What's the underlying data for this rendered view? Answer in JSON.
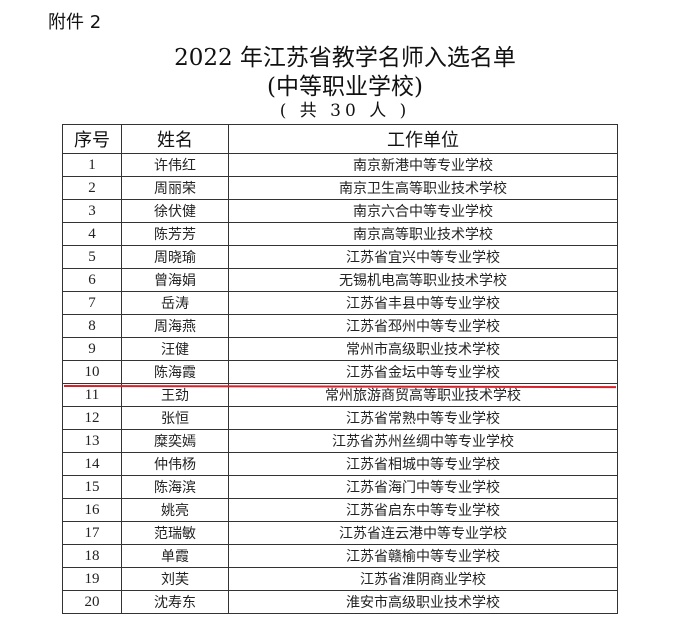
{
  "attachment_label": "附件 2",
  "title": "2022 年江苏省教学名师入选名单",
  "subtitle": "(中等职业学校)",
  "total": "( 共 30 人 )",
  "table": {
    "headers": [
      "序号",
      "姓名",
      "工作单位"
    ],
    "rows": [
      [
        "1",
        "许伟红",
        "南京新港中等专业学校"
      ],
      [
        "2",
        "周丽荣",
        "南京卫生高等职业技术学校"
      ],
      [
        "3",
        "徐伏健",
        "南京六合中等专业学校"
      ],
      [
        "4",
        "陈芳芳",
        "南京高等职业技术学校"
      ],
      [
        "5",
        "周晓瑜",
        "江苏省宜兴中等专业学校"
      ],
      [
        "6",
        "曾海娟",
        "无锡机电高等职业技术学校"
      ],
      [
        "7",
        "岳涛",
        "江苏省丰县中等专业学校"
      ],
      [
        "8",
        "周海燕",
        "江苏省邳州中等专业学校"
      ],
      [
        "9",
        "汪健",
        "常州市高级职业技术学校"
      ],
      [
        "10",
        "陈海霞",
        "江苏省金坛中等专业学校"
      ],
      [
        "11",
        "王劲",
        "常州旅游商贸高等职业技术学校"
      ],
      [
        "12",
        "张恒",
        "江苏省常熟中等专业学校"
      ],
      [
        "13",
        "糜奕嫣",
        "江苏省苏州丝绸中等专业学校"
      ],
      [
        "14",
        "仲伟杨",
        "江苏省相城中等专业学校"
      ],
      [
        "15",
        "陈海滨",
        "江苏省海门中等专业学校"
      ],
      [
        "16",
        "姚亮",
        "江苏省启东中等专业学校"
      ],
      [
        "17",
        "范瑞敏",
        "江苏省连云港中等专业学校"
      ],
      [
        "18",
        "单霞",
        "江苏省赣榆中等专业学校"
      ],
      [
        "19",
        "刘芙",
        "江苏省淮阴商业学校"
      ],
      [
        "20",
        "沈寿东",
        "淮安市高级职业技术学校"
      ]
    ]
  },
  "annotation_color": "#d8202a"
}
